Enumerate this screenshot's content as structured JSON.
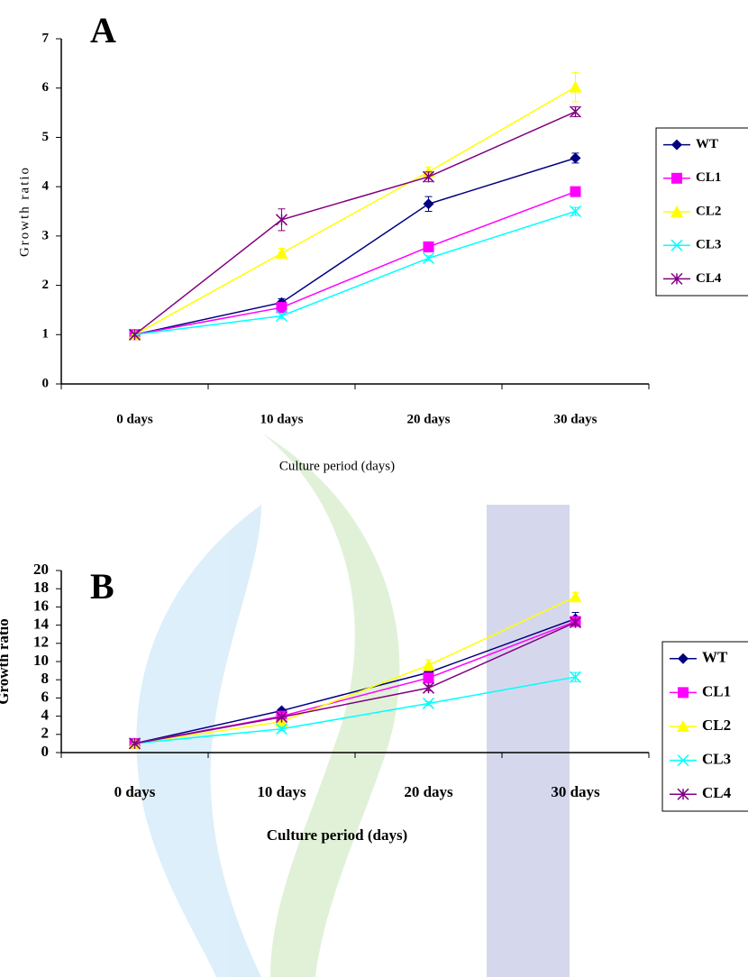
{
  "chart_data": [
    {
      "type": "line",
      "title": "A",
      "x_label": "Culture period (days)",
      "y_label": "Growth ratio",
      "categories": [
        "0 days",
        "10 days",
        "20 days",
        "30 days"
      ],
      "ylim": [
        0,
        7
      ],
      "yticks": [
        0,
        1,
        2,
        3,
        4,
        5,
        6,
        7
      ],
      "series": [
        {
          "name": "WT",
          "color": "#000080",
          "marker": "diamond",
          "values": [
            1,
            1.65,
            3.65,
            4.58
          ],
          "errors": [
            0.05,
            0.08,
            0.15,
            0.1
          ]
        },
        {
          "name": "CL1",
          "color": "#ff00ff",
          "marker": "square",
          "values": [
            1,
            1.55,
            2.78,
            3.9
          ],
          "errors": [
            0.05,
            0.1,
            0.1,
            0.08
          ]
        },
        {
          "name": "CL2",
          "color": "#ffff00",
          "marker": "triangle",
          "values": [
            1,
            2.65,
            4.3,
            6.02
          ],
          "errors": [
            0.05,
            0.1,
            0.1,
            0.3
          ]
        },
        {
          "name": "CL3",
          "color": "#00ffff",
          "marker": "x",
          "values": [
            1,
            1.38,
            2.55,
            3.5
          ],
          "errors": [
            0.03,
            0.05,
            0.05,
            0.08
          ]
        },
        {
          "name": "CL4",
          "color": "#800080",
          "marker": "asterisk",
          "values": [
            1,
            3.33,
            4.2,
            5.52
          ],
          "errors": [
            0.03,
            0.22,
            0.1,
            0.1
          ]
        }
      ]
    },
    {
      "type": "line",
      "title": "B",
      "x_label": "Culture period (days)",
      "y_label": "Growth ratio",
      "categories": [
        "0 days",
        "10 days",
        "20 days",
        "30 days"
      ],
      "ylim": [
        0,
        20
      ],
      "yticks": [
        0,
        2,
        4,
        6,
        8,
        10,
        12,
        14,
        16,
        18,
        20
      ],
      "series": [
        {
          "name": "WT",
          "color": "#000080",
          "marker": "diamond",
          "values": [
            1,
            4.6,
            8.8,
            14.7
          ],
          "errors": [
            0.1,
            0.2,
            0.5,
            0.7
          ]
        },
        {
          "name": "CL1",
          "color": "#ff00ff",
          "marker": "square",
          "values": [
            1,
            4.0,
            8.2,
            14.4
          ],
          "errors": [
            0.1,
            0.3,
            0.4,
            0.3
          ]
        },
        {
          "name": "CL2",
          "color": "#ffff00",
          "marker": "triangle",
          "values": [
            1,
            3.4,
            9.6,
            17.1
          ],
          "errors": [
            0.1,
            0.3,
            0.6,
            0.5
          ]
        },
        {
          "name": "CL3",
          "color": "#00ffff",
          "marker": "x",
          "values": [
            1,
            2.6,
            5.4,
            8.3
          ],
          "errors": [
            0.1,
            0.2,
            0.2,
            0.5
          ]
        },
        {
          "name": "CL4",
          "color": "#800080",
          "marker": "asterisk",
          "values": [
            1,
            3.9,
            7.1,
            14.3
          ],
          "errors": [
            0.1,
            0.2,
            0.3,
            0.3
          ]
        }
      ]
    }
  ]
}
